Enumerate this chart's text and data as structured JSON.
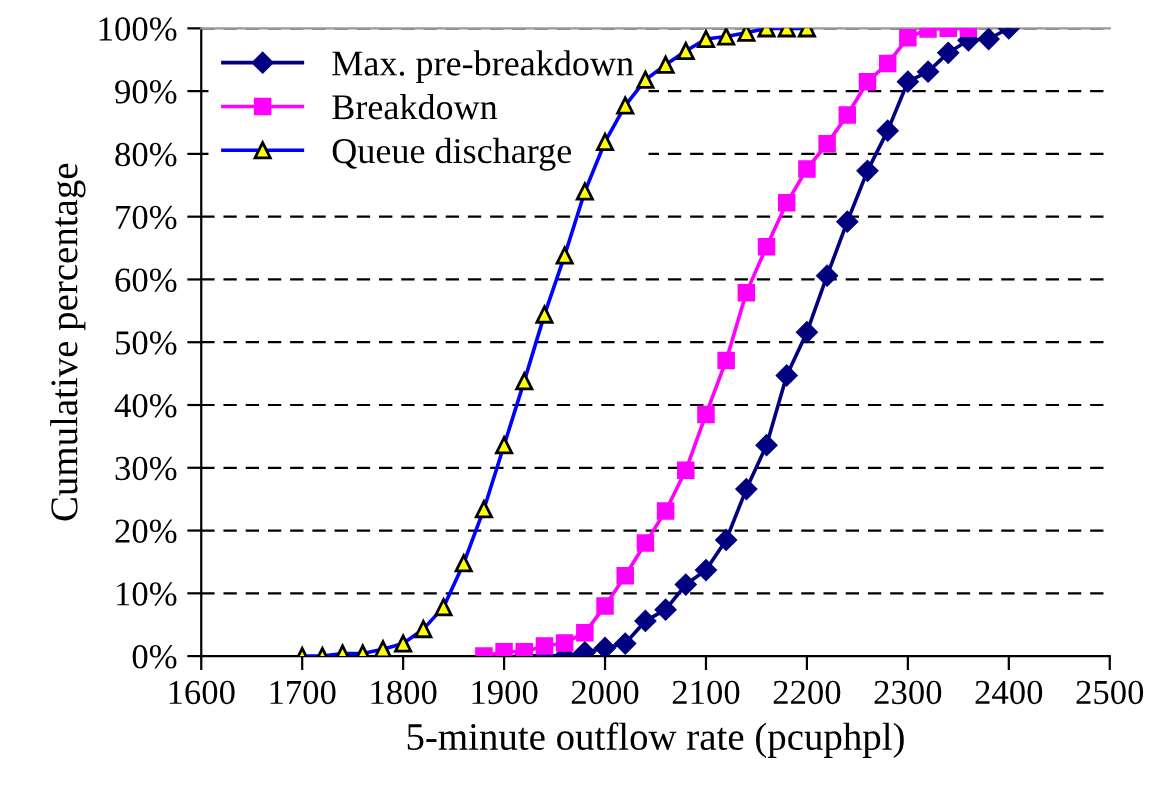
{
  "chart_data": {
    "type": "line",
    "xlabel": "5-minute outflow rate (pcuphpl)",
    "ylabel": "Cumulative percentage",
    "xlim": [
      1600,
      2500
    ],
    "xticks": [
      1600,
      1700,
      1800,
      1900,
      2000,
      2100,
      2200,
      2300,
      2400,
      2500
    ],
    "ylim": [
      0,
      100
    ],
    "yticks": [
      {
        "value": 0,
        "label": "0%"
      },
      {
        "value": 10,
        "label": "10%"
      },
      {
        "value": 20,
        "label": "20%"
      },
      {
        "value": 30,
        "label": "30%"
      },
      {
        "value": 40,
        "label": "40%"
      },
      {
        "value": 50,
        "label": "50%"
      },
      {
        "value": 60,
        "label": "60%"
      },
      {
        "value": 70,
        "label": "70%"
      },
      {
        "value": 80,
        "label": "80%"
      },
      {
        "value": 90,
        "label": "90%"
      },
      {
        "value": 100,
        "label": "100%"
      }
    ],
    "grid": "y",
    "legend": "top left",
    "series": [
      {
        "name": "Max. pre-breakdown",
        "color": "#000080",
        "marker": "diamond",
        "x": [
          1920,
          1940,
          1960,
          1980,
          2000,
          2020,
          2040,
          2060,
          2080,
          2100,
          2120,
          2140,
          2160,
          2180,
          2200,
          2220,
          2240,
          2260,
          2280,
          2300,
          2320,
          2340,
          2360,
          2380,
          2400
        ],
        "values": [
          0,
          0,
          0,
          0.6,
          1.3,
          2.0,
          5.6,
          7.4,
          11.4,
          13.7,
          18.5,
          26.6,
          33.6,
          44.7,
          51.6,
          60.6,
          69.2,
          77.3,
          83.7,
          91.5,
          93.1,
          96.1,
          98.1,
          98.3,
          100
        ]
      },
      {
        "name": "Breakdown",
        "color": "#ff00ff",
        "marker": "square",
        "x": [
          1880,
          1900,
          1920,
          1940,
          1960,
          1980,
          2000,
          2020,
          2040,
          2060,
          2080,
          2100,
          2120,
          2140,
          2160,
          2180,
          2200,
          2220,
          2240,
          2260,
          2280,
          2300,
          2320,
          2340,
          2360
        ],
        "values": [
          0,
          0.7,
          0.7,
          1.6,
          2.1,
          3.7,
          8.0,
          12.8,
          18.0,
          23.1,
          29.6,
          38.5,
          47.1,
          57.9,
          65.2,
          72.2,
          77.6,
          81.6,
          86.2,
          91.5,
          94.4,
          98.5,
          99.9,
          100,
          100
        ]
      },
      {
        "name": "Queue discharge",
        "color": "#0000ff",
        "marker": "triangle",
        "x": [
          1700,
          1720,
          1740,
          1760,
          1780,
          1800,
          1820,
          1840,
          1860,
          1880,
          1900,
          1920,
          1940,
          1960,
          1980,
          2000,
          2020,
          2040,
          2060,
          2080,
          2100,
          2120,
          2140,
          2160,
          2180,
          2200
        ],
        "values": [
          0,
          0,
          0.4,
          0.4,
          1.1,
          2.0,
          4.3,
          7.8,
          14.8,
          23.4,
          33.6,
          43.8,
          54.4,
          63.8,
          74.0,
          81.9,
          87.7,
          91.8,
          94.2,
          96.4,
          98.3,
          98.7,
          99.3,
          100,
          100,
          100
        ]
      }
    ]
  }
}
